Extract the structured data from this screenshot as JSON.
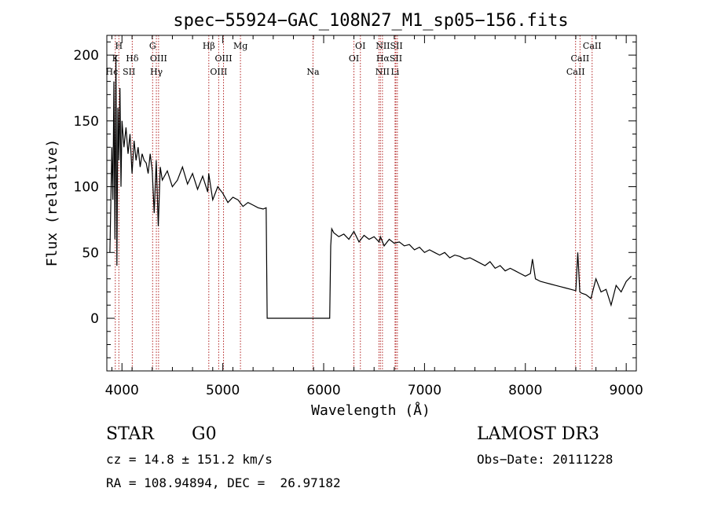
{
  "chart_data": {
    "type": "line",
    "title": "spec−55924−GAC_108N27_M1_sp05−156.fits",
    "xlabel": "Wavelength (Å)",
    "ylabel": "Flux (relative)",
    "xlim": [
      3850,
      9100
    ],
    "ylim": [
      -40,
      215
    ],
    "xticks": [
      4000,
      5000,
      6000,
      7000,
      8000,
      9000
    ],
    "yticks": [
      0,
      50,
      100,
      150,
      200
    ],
    "series": [
      {
        "name": "flux",
        "x": [
          3880,
          3900,
          3910,
          3920,
          3930,
          3940,
          3950,
          3960,
          3970,
          3980,
          3990,
          4000,
          4020,
          4040,
          4060,
          4080,
          4100,
          4120,
          4140,
          4160,
          4180,
          4200,
          4220,
          4240,
          4260,
          4280,
          4300,
          4320,
          4340,
          4360,
          4380,
          4400,
          4450,
          4500,
          4550,
          4600,
          4650,
          4700,
          4750,
          4800,
          4850,
          4860,
          4900,
          4950,
          5000,
          5050,
          5100,
          5150,
          5200,
          5250,
          5300,
          5350,
          5400,
          5430,
          5440,
          5450,
          5500,
          5600,
          5700,
          5800,
          5900,
          6000,
          6060,
          6070,
          6080,
          6100,
          6150,
          6200,
          6250,
          6300,
          6350,
          6400,
          6450,
          6500,
          6550,
          6563,
          6600,
          6650,
          6700,
          6750,
          6800,
          6850,
          6900,
          6950,
          7000,
          7050,
          7100,
          7150,
          7200,
          7250,
          7300,
          7350,
          7400,
          7450,
          7500,
          7550,
          7600,
          7650,
          7700,
          7750,
          7800,
          7850,
          7900,
          7950,
          8000,
          8050,
          8070,
          8100,
          8150,
          8200,
          8250,
          8300,
          8350,
          8400,
          8450,
          8500,
          8520,
          8540,
          8560,
          8600,
          8650,
          8700,
          8750,
          8800,
          8850,
          8900,
          8950,
          9000,
          9050
        ],
        "y": [
          50,
          130,
          90,
          180,
          60,
          200,
          40,
          160,
          120,
          175,
          100,
          150,
          130,
          145,
          125,
          140,
          110,
          135,
          120,
          130,
          115,
          125,
          120,
          118,
          110,
          125,
          112,
          80,
          120,
          70,
          115,
          105,
          112,
          100,
          105,
          115,
          102,
          110,
          98,
          108,
          96,
          110,
          90,
          100,
          95,
          88,
          92,
          90,
          85,
          88,
          86,
          84,
          83,
          84,
          0,
          0,
          0,
          0,
          0,
          0,
          0,
          0,
          0,
          55,
          68,
          65,
          62,
          64,
          60,
          66,
          58,
          63,
          60,
          62,
          58,
          62,
          55,
          60,
          57,
          58,
          55,
          56,
          52,
          54,
          50,
          52,
          50,
          48,
          50,
          46,
          48,
          47,
          45,
          46,
          44,
          42,
          40,
          43,
          38,
          40,
          36,
          38,
          36,
          34,
          32,
          34,
          45,
          30,
          28,
          27,
          26,
          25,
          24,
          23,
          22,
          21,
          50,
          20,
          19,
          18,
          15,
          30,
          20,
          22,
          10,
          25,
          20,
          28,
          32
        ]
      }
    ],
    "lines": [
      {
        "label": "K",
        "x": 3934
      },
      {
        "label": "H",
        "x": 3969
      },
      {
        "label": "Hδ",
        "x": 4102
      },
      {
        "label": "G",
        "x": 4304
      },
      {
        "label": "Hγ",
        "x": 4341
      },
      {
        "label": "OIII",
        "x": 4363
      },
      {
        "label": "Hβ",
        "x": 4861
      },
      {
        "label": "OIII",
        "x": 4959
      },
      {
        "label": "OIII",
        "x": 5007
      },
      {
        "label": "Mg",
        "x": 5175
      },
      {
        "label": "Na",
        "x": 5894
      },
      {
        "label": "OI",
        "x": 6300
      },
      {
        "label": "OI",
        "x": 6364
      },
      {
        "label": "NII",
        "x": 6548
      },
      {
        "label": "Hα",
        "x": 6563
      },
      {
        "label": "NII",
        "x": 6583
      },
      {
        "label": "Li",
        "x": 6708
      },
      {
        "label": "SII",
        "x": 6716
      },
      {
        "label": "SII",
        "x": 6731
      },
      {
        "label": "CaII",
        "x": 8498
      },
      {
        "label": "CaII",
        "x": 8542
      },
      {
        "label": "CaII",
        "x": 8662
      }
    ],
    "line_labels": [
      {
        "text": "H",
        "x": 3969,
        "row": 1
      },
      {
        "text": "K",
        "x": 3934,
        "row": 2
      },
      {
        "text": "Hϵ",
        "x": 3900,
        "row": 3
      },
      {
        "text": "Hδ",
        "x": 4102,
        "row": 2
      },
      {
        "text": "SII",
        "x": 4070,
        "row": 3
      },
      {
        "text": "G",
        "x": 4304,
        "row": 1
      },
      {
        "text": "OIII",
        "x": 4363,
        "row": 2
      },
      {
        "text": "Hγ",
        "x": 4341,
        "row": 3
      },
      {
        "text": "Hβ",
        "x": 4861,
        "row": 1
      },
      {
        "text": "OIII",
        "x": 5007,
        "row": 2
      },
      {
        "text": "OIII",
        "x": 4959,
        "row": 3
      },
      {
        "text": "Mg",
        "x": 5175,
        "row": 1
      },
      {
        "text": "Na",
        "x": 5894,
        "row": 3
      },
      {
        "text": "OI",
        "x": 6364,
        "row": 1
      },
      {
        "text": "OI",
        "x": 6300,
        "row": 2
      },
      {
        "text": "NIISII",
        "x": 6650,
        "row": 1
      },
      {
        "text": "HαSII",
        "x": 6650,
        "row": 2
      },
      {
        "text": "NII",
        "x": 6583,
        "row": 3
      },
      {
        "text": "Li",
        "x": 6708,
        "row": 3
      },
      {
        "text": "CaII",
        "x": 8662,
        "row": 1
      },
      {
        "text": "CaII",
        "x": 8542,
        "row": 2
      },
      {
        "text": "CaII",
        "x": 8498,
        "row": 3
      }
    ],
    "colors": {
      "spectrum": "#000000",
      "lines": "#b22222",
      "axes": "#000000"
    }
  },
  "info": {
    "object_class": "STAR",
    "subclass": "G0",
    "survey": "LAMOST DR3",
    "cz": "cz = 14.8 ± 151.2 km/s",
    "obs_date": "Obs−Date: 20111228",
    "coords": "RA = 108.94894, DEC =  26.97182"
  }
}
